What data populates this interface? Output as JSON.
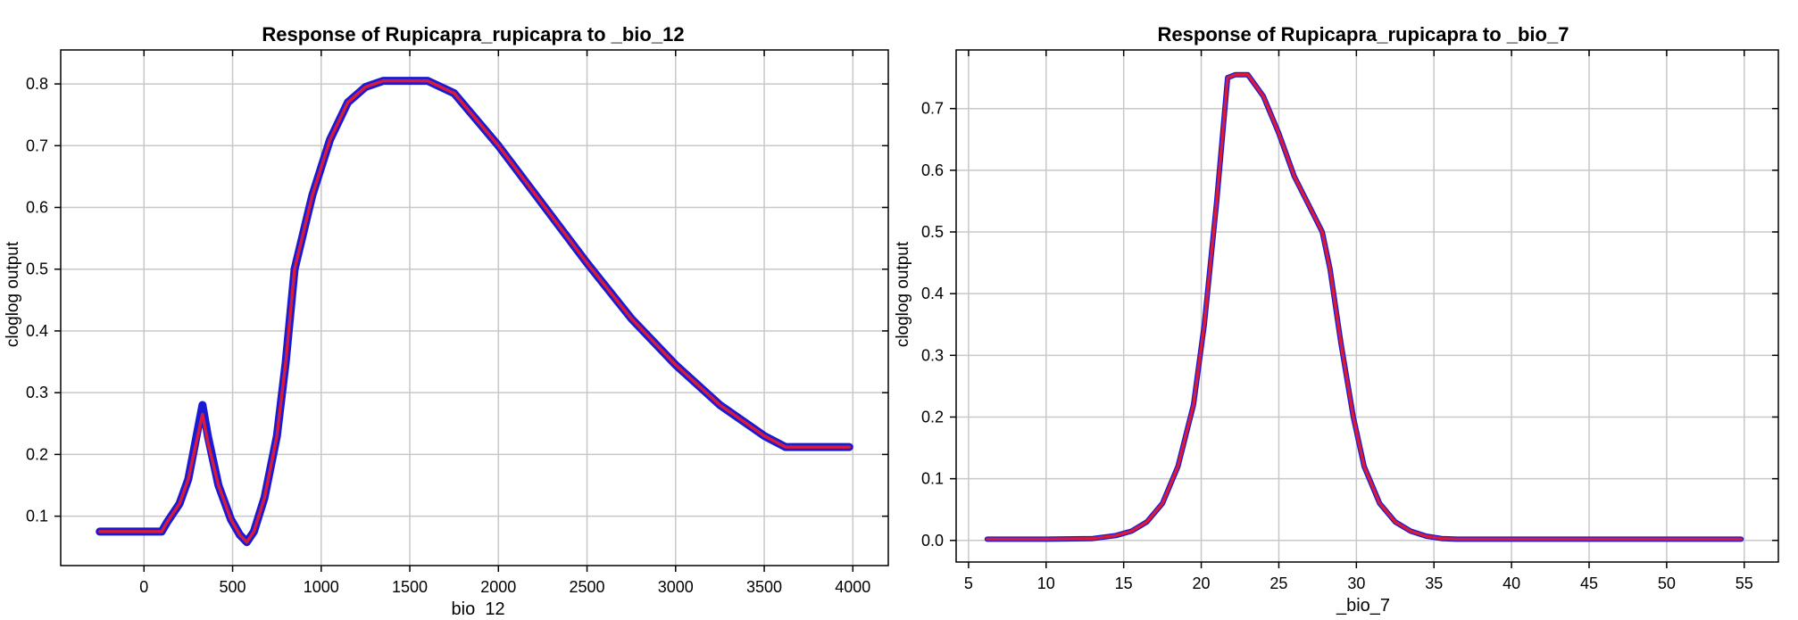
{
  "colors": {
    "background": "#ffffff",
    "grid": "#c8c8c8",
    "axis": "#000000",
    "series_blue": "#1a1ad6",
    "series_red": "#d81b3a"
  },
  "chart_data": [
    {
      "type": "line",
      "title": "Response of Rupicapra_rupicapra to _bio_12",
      "xlabel": "_bio_12",
      "ylabel": "cloglog output",
      "xlim": [
        -470,
        4200
      ],
      "ylim": [
        0.02,
        0.855
      ],
      "xticks": [
        0,
        500,
        1000,
        1500,
        2000,
        2500,
        3000,
        3500,
        4000
      ],
      "yticks": [
        0.1,
        0.2,
        0.3,
        0.4,
        0.5,
        0.6,
        0.7,
        0.8
      ],
      "grid": true,
      "legend": "none",
      "series": [
        {
          "color": "blue",
          "x": [
            -250,
            100,
            130,
            200,
            250,
            330,
            360,
            420,
            490,
            540,
            580,
            620,
            680,
            750,
            800,
            850,
            950,
            1050,
            1150,
            1250,
            1350,
            1450,
            1550,
            1600,
            1750,
            2000,
            2250,
            2500,
            2750,
            3000,
            3250,
            3500,
            3620,
            3980
          ],
          "y": [
            0.075,
            0.075,
            0.09,
            0.12,
            0.16,
            0.28,
            0.23,
            0.15,
            0.095,
            0.07,
            0.058,
            0.075,
            0.13,
            0.23,
            0.35,
            0.5,
            0.62,
            0.71,
            0.77,
            0.795,
            0.805,
            0.805,
            0.805,
            0.805,
            0.785,
            0.7,
            0.605,
            0.51,
            0.42,
            0.345,
            0.28,
            0.23,
            0.212,
            0.212
          ]
        },
        {
          "color": "red",
          "x": [
            -250,
            100,
            130,
            200,
            250,
            330,
            360,
            420,
            490,
            540,
            580,
            620,
            680,
            750,
            800,
            850,
            950,
            1050,
            1150,
            1250,
            1350,
            1450,
            1550,
            1600,
            1750,
            2000,
            2250,
            2500,
            2750,
            3000,
            3250,
            3500,
            3620,
            3980
          ],
          "y": [
            0.075,
            0.075,
            0.09,
            0.12,
            0.16,
            0.265,
            0.22,
            0.15,
            0.095,
            0.07,
            0.058,
            0.075,
            0.13,
            0.23,
            0.35,
            0.5,
            0.62,
            0.71,
            0.77,
            0.795,
            0.805,
            0.805,
            0.805,
            0.805,
            0.785,
            0.7,
            0.605,
            0.51,
            0.42,
            0.345,
            0.28,
            0.23,
            0.212,
            0.212
          ]
        }
      ]
    },
    {
      "type": "line",
      "title": "Response of Rupicapra_rupicapra to _bio_7",
      "xlabel": "_bio_7",
      "ylabel": "cloglog output",
      "xlim": [
        4.2,
        57.2
      ],
      "ylim": [
        -0.035,
        0.795
      ],
      "xticks": [
        5,
        10,
        15,
        20,
        25,
        30,
        35,
        40,
        45,
        50,
        55
      ],
      "yticks": [
        0.0,
        0.1,
        0.2,
        0.3,
        0.4,
        0.5,
        0.6,
        0.7
      ],
      "grid": true,
      "legend": "none",
      "series": [
        {
          "color": "blue",
          "x": [
            6.2,
            10,
            13,
            14.5,
            15.5,
            16.5,
            17.5,
            18.5,
            19.5,
            20.2,
            21,
            21.7,
            22.2,
            23,
            24,
            25,
            26,
            27,
            27.8,
            28.3,
            29,
            29.8,
            30.5,
            31.5,
            32.5,
            33.5,
            34.5,
            35.5,
            36.5,
            40,
            45,
            50,
            54.8
          ],
          "y": [
            0.002,
            0.002,
            0.003,
            0.008,
            0.015,
            0.03,
            0.06,
            0.12,
            0.22,
            0.35,
            0.55,
            0.75,
            0.755,
            0.755,
            0.72,
            0.66,
            0.59,
            0.54,
            0.5,
            0.44,
            0.32,
            0.2,
            0.12,
            0.06,
            0.03,
            0.015,
            0.007,
            0.003,
            0.002,
            0.002,
            0.002,
            0.002,
            0.002
          ]
        },
        {
          "color": "red",
          "x": [
            6.2,
            10,
            13,
            14.5,
            15.5,
            16.5,
            17.5,
            18.5,
            19.5,
            20.2,
            21,
            21.7,
            22.2,
            23,
            24,
            25,
            26,
            27,
            27.8,
            28.3,
            29,
            29.8,
            30.5,
            31.5,
            32.5,
            33.5,
            34.5,
            35.5,
            36.5,
            40,
            45,
            50,
            54.8
          ],
          "y": [
            0.002,
            0.002,
            0.003,
            0.008,
            0.015,
            0.03,
            0.06,
            0.12,
            0.22,
            0.35,
            0.55,
            0.75,
            0.755,
            0.755,
            0.72,
            0.66,
            0.59,
            0.54,
            0.5,
            0.44,
            0.32,
            0.2,
            0.12,
            0.06,
            0.03,
            0.015,
            0.007,
            0.003,
            0.002,
            0.002,
            0.002,
            0.002,
            0.002
          ]
        }
      ]
    }
  ]
}
